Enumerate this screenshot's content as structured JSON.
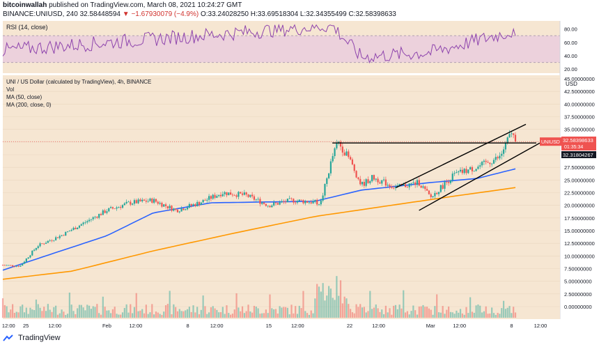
{
  "header": {
    "publisher": "bitcoinwallah",
    "published_text": "published on TradingView.com, March 08, 2021 10:24:27 GMT",
    "symbol_line": "BINANCE:UNIUSD, 240",
    "last_price": "32.58448594",
    "change_arrow": "▼",
    "change": "−1.67930079 (−4.9%)",
    "open": "O:33.24028250",
    "high": "H:33.69518304",
    "low": "L:32.34355499",
    "close": "C:32.58398633"
  },
  "rsi_panel": {
    "title": "RSI (14, close)",
    "ticks": [
      "80.00",
      "60.00",
      "40.00",
      "20.00"
    ],
    "band": [
      30,
      70
    ],
    "color": "#8e44ad",
    "band_color": "#e8c8e0"
  },
  "price_panel": {
    "title": "UNI / US Dollar (calculated by TradingView), 4h, BINANCE",
    "studies": [
      "Vol",
      "MA (50, close)",
      "MA (200, close, 0)"
    ],
    "currency": "USD",
    "badge_symbol": "UNIUSD",
    "badge_price": "32.58398633",
    "badge_countdown": "01:35:34",
    "level_label": "32.31804267",
    "background": "#f6e6d2",
    "up_color": "#26a69a",
    "down_color": "#ef5350",
    "ma50_color": "#2962ff",
    "ma200_color": "#ff9800",
    "y_ticks": [
      "45.00000000",
      "42.50000000",
      "40.00000000",
      "37.50000000",
      "35.00000000",
      "32.50000000",
      "30.00000000",
      "27.50000000",
      "25.00000000",
      "22.50000000",
      "20.00000000",
      "17.50000000",
      "15.00000000",
      "12.50000000",
      "10.00000000",
      "7.50000000",
      "5.00000000",
      "2.50000000",
      "0.00000000"
    ]
  },
  "x_axis": [
    "12:00",
    "25",
    "12:00",
    "Feb",
    "12:00",
    "8",
    "12:00",
    "15",
    "12:00",
    "22",
    "12:00",
    "Mar",
    "12:00",
    "8",
    "12:00"
  ],
  "chart_data": {
    "type": "candlestick",
    "title": "UNI / US Dollar (calculated by TradingView), 4h, BINANCE",
    "ylim": [
      0,
      45
    ],
    "x_categories": [
      "12:00",
      "25",
      "12:00",
      "Feb",
      "12:00",
      "8",
      "12:00",
      "15",
      "12:00",
      "22",
      "12:00",
      "Mar",
      "12:00",
      "8",
      "12:00"
    ],
    "close_path_keypoints": [
      {
        "x": "Jan 23 00:00",
        "y": 8.2
      },
      {
        "x": "Jan 24 12:00",
        "y": 8.0
      },
      {
        "x": "Jan 26 00:00",
        "y": 12.0
      },
      {
        "x": "Jan 28 00:00",
        "y": 14.0
      },
      {
        "x": "Jan 30 00:00",
        "y": 16.5
      },
      {
        "x": "Feb 01 00:00",
        "y": 19.0
      },
      {
        "x": "Feb 03 00:00",
        "y": 20.5
      },
      {
        "x": "Feb 05 00:00",
        "y": 21.0
      },
      {
        "x": "Feb 07 00:00",
        "y": 19.0
      },
      {
        "x": "Feb 09 00:00",
        "y": 20.5
      },
      {
        "x": "Feb 11 00:00",
        "y": 22.5
      },
      {
        "x": "Feb 13 00:00",
        "y": 22.0
      },
      {
        "x": "Feb 15 00:00",
        "y": 20.0
      },
      {
        "x": "Feb 17 00:00",
        "y": 21.0
      },
      {
        "x": "Feb 19 12:00",
        "y": 20.5
      },
      {
        "x": "Feb 20 12:00",
        "y": 29.5
      },
      {
        "x": "Feb 21 00:00",
        "y": 32.5
      },
      {
        "x": "Feb 22 00:00",
        "y": 29.0
      },
      {
        "x": "Feb 23 00:00",
        "y": 24.0
      },
      {
        "x": "Feb 24 00:00",
        "y": 25.5
      },
      {
        "x": "Feb 26 00:00",
        "y": 23.5
      },
      {
        "x": "Feb 28 00:00",
        "y": 24.5
      },
      {
        "x": "Mar 01 00:00",
        "y": 21.5
      },
      {
        "x": "Mar 03 00:00",
        "y": 26.0
      },
      {
        "x": "Mar 05 00:00",
        "y": 27.5
      },
      {
        "x": "Mar 07 00:00",
        "y": 29.5
      },
      {
        "x": "Mar 08 00:00",
        "y": 34.5
      },
      {
        "x": "Mar 08 08:00",
        "y": 32.58
      }
    ],
    "ma50_keypoints": [
      {
        "x": "Jan 23 00:00",
        "y": 7.2
      },
      {
        "x": "Feb 01 00:00",
        "y": 14.0
      },
      {
        "x": "Feb 05 00:00",
        "y": 18.5
      },
      {
        "x": "Feb 10 00:00",
        "y": 20.5
      },
      {
        "x": "Feb 19 00:00",
        "y": 20.8
      },
      {
        "x": "Feb 23 00:00",
        "y": 23.0
      },
      {
        "x": "Mar 01 00:00",
        "y": 24.5
      },
      {
        "x": "Mar 05 00:00",
        "y": 25.3
      },
      {
        "x": "Mar 08 08:00",
        "y": 27.2
      }
    ],
    "ma200_keypoints": [
      {
        "x": "Jan 23 00:00",
        "y": 5.4
      },
      {
        "x": "Jan 29 00:00",
        "y": 7.0
      },
      {
        "x": "Feb 05 00:00",
        "y": 11.0
      },
      {
        "x": "Feb 12 00:00",
        "y": 14.5
      },
      {
        "x": "Feb 19 00:00",
        "y": 17.8
      },
      {
        "x": "Feb 25 00:00",
        "y": 19.8
      },
      {
        "x": "Mar 03 00:00",
        "y": 21.8
      },
      {
        "x": "Mar 08 08:00",
        "y": 23.5
      }
    ],
    "rsi_keypoints": [
      {
        "x": "Jan 23 00:00",
        "y": 48
      },
      {
        "x": "Feb 20 12:00",
        "y": 85
      },
      {
        "x": "Feb 23 00:00",
        "y": 38
      },
      {
        "x": "Mar 01 00:00",
        "y": 45
      },
      {
        "x": "Mar 08 00:00",
        "y": 76
      },
      {
        "x": "Mar 08 08:00",
        "y": 65
      }
    ],
    "horizontal_level": 32.31804267,
    "last_close": 32.58398633
  }
}
